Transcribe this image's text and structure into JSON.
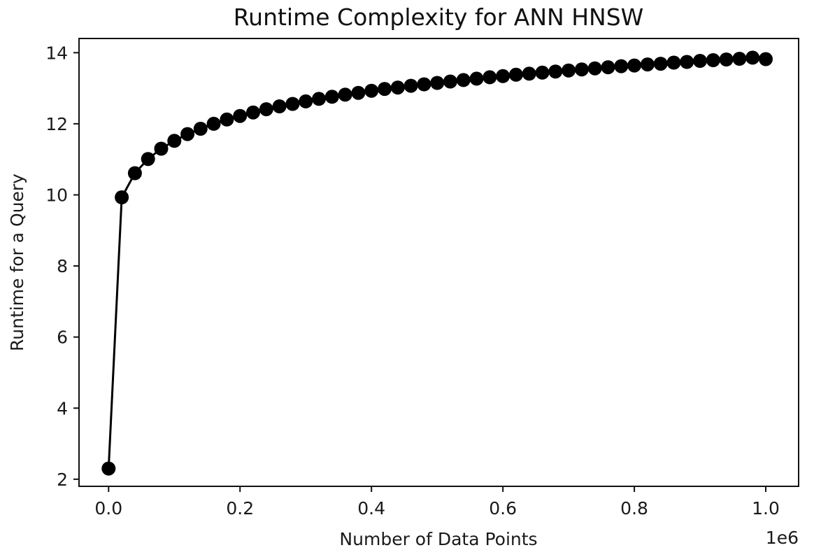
{
  "chart_data": {
    "type": "line",
    "title": "Runtime Complexity for ANN HNSW",
    "xlabel": "Number of Data Points",
    "ylabel": "Runtime for a Query",
    "x_offset_text": "1e6",
    "xlim": [
      -45000,
      1050000
    ],
    "ylim": [
      1.8,
      14.4
    ],
    "x_ticks": [
      0,
      200000,
      400000,
      600000,
      800000,
      1000000
    ],
    "x_tick_labels": [
      "0.0",
      "0.2",
      "0.4",
      "0.6",
      "0.8",
      "1.0"
    ],
    "y_ticks": [
      2,
      4,
      6,
      8,
      10,
      12,
      14
    ],
    "y_tick_labels": [
      "2",
      "4",
      "6",
      "8",
      "10",
      "12",
      "14"
    ],
    "grid": false,
    "marker": "circle",
    "colors": {
      "series": "#000000",
      "frame": "#111111"
    },
    "series": [
      {
        "x": [
          0,
          20000,
          40000,
          60000,
          80000,
          100000,
          120000,
          140000,
          160000,
          180000,
          200000,
          220000,
          240000,
          260000,
          280000,
          300000,
          320000,
          340000,
          360000,
          380000,
          400000,
          420000,
          440000,
          460000,
          480000,
          500000,
          520000,
          540000,
          560000,
          580000,
          600000,
          620000,
          640000,
          660000,
          680000,
          700000,
          720000,
          740000,
          760000,
          780000,
          800000,
          820000,
          840000,
          860000,
          880000,
          900000,
          920000,
          940000,
          960000,
          980000,
          1000000
        ],
        "values": [
          2.3,
          9.93,
          10.61,
          11.01,
          11.3,
          11.52,
          11.71,
          11.86,
          12.0,
          12.12,
          12.22,
          12.32,
          12.41,
          12.49,
          12.56,
          12.63,
          12.7,
          12.76,
          12.82,
          12.87,
          12.93,
          12.98,
          13.02,
          13.07,
          13.11,
          13.15,
          13.19,
          13.23,
          13.27,
          13.31,
          13.34,
          13.38,
          13.41,
          13.44,
          13.47,
          13.5,
          13.53,
          13.56,
          13.59,
          13.62,
          13.64,
          13.67,
          13.69,
          13.72,
          13.74,
          13.77,
          13.79,
          13.81,
          13.83,
          13.86,
          13.82
        ]
      }
    ]
  }
}
